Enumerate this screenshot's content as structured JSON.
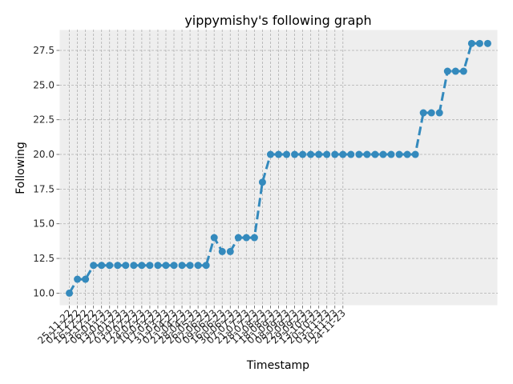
{
  "chart_data": {
    "type": "line",
    "title": "yippymishy's following graph",
    "xlabel": "Timestamp",
    "ylabel": "Following",
    "ylim": [
      9.1,
      29.0
    ],
    "yticks": [
      "10.0",
      "12.5",
      "15.0",
      "17.5",
      "20.0",
      "22.5",
      "25.0",
      "27.5"
    ],
    "grid": true,
    "line_style": "dashed",
    "colors": {
      "line": "#348abd",
      "plot_bg": "#eeeeee",
      "grid": "#b0b0b0"
    },
    "categories": [
      "25-11-22",
      "02-12-22",
      "16-12-22",
      "23-12-22",
      "06-01-23",
      "13-01-23",
      "27-01-23",
      "03-02-23",
      "17-02-23",
      "24-02-23",
      "10-03-23",
      "17-03-23",
      "31-03-23",
      "07-04-23",
      "21-04-23",
      "28-04-23",
      "26-05-23",
      "02-06-23",
      "09-06-23",
      "16-06-23",
      "30-06-23",
      "07-07-23",
      "21-07-23",
      "28-07-23",
      "11-08-23",
      "18-08-23",
      "01-09-23",
      "08-09-23",
      "22-09-23",
      "29-09-23",
      "13-10-23",
      "20-10-23",
      "03-11-23",
      "10-11-23",
      "24-11-23"
    ],
    "x": [
      0.0,
      1.0,
      2.0,
      3.0,
      4.0,
      5.0,
      6.0,
      7.0,
      8.0,
      9.0,
      10.0,
      11.0,
      12.0,
      13.0,
      14.0,
      15.0,
      16.0,
      17.0,
      18.0,
      19.0,
      20.0,
      21.0,
      22.0,
      23.0,
      24.0,
      25.0,
      26.0,
      27.0,
      28.0,
      29.0,
      30.0,
      31.0,
      32.0,
      33.0,
      34.0,
      35.0,
      36.0,
      37.0,
      38.0,
      39.0,
      40.0,
      41.0,
      42.0,
      43.0,
      44.0,
      45.0,
      46.0,
      47.0,
      48.0,
      49.0,
      50.0,
      51.0,
      52.0
    ],
    "values": [
      10,
      11,
      11,
      12,
      12,
      12,
      12,
      12,
      12,
      12,
      12,
      12,
      12,
      12,
      12,
      12,
      12,
      12,
      14,
      13,
      13,
      14,
      14,
      14,
      18,
      20,
      20,
      20,
      20,
      20,
      20,
      20,
      20,
      20,
      20,
      20,
      20,
      20,
      20,
      20,
      20,
      20,
      20,
      20,
      23,
      23,
      23,
      26,
      26,
      26,
      28,
      28,
      28
    ]
  }
}
